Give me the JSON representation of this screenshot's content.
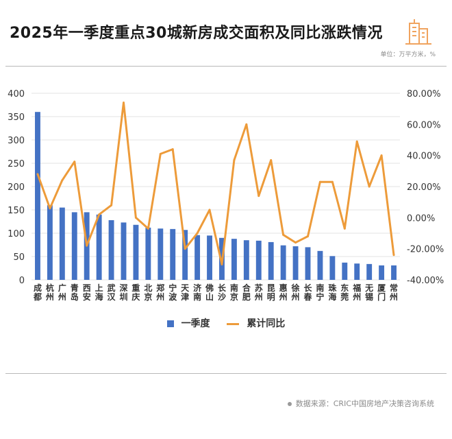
{
  "header": {
    "title": "2025年一季度重点30城新房成交面积及同比涨跌情况",
    "unit": "单位：万平方米，%"
  },
  "footer": {
    "source": "数据来源：CRIC中国房地产决策咨询系统"
  },
  "colors": {
    "bar": "#4472C4",
    "line": "#ED9B3A",
    "logo": "#F0A35E"
  },
  "chart_data": {
    "type": "bar",
    "categories": [
      "成都",
      "杭州",
      "广州",
      "青岛",
      "西安",
      "上海",
      "武汉",
      "深圳",
      "重庆",
      "北京",
      "郑州",
      "宁波",
      "天津",
      "济南",
      "佛山",
      "长沙",
      "南京",
      "合肥",
      "苏州",
      "昆明",
      "惠州",
      "徐州",
      "长春",
      "南宁",
      "珠海",
      "东莞",
      "福州",
      "无锡",
      "厦门",
      "常州"
    ],
    "series": [
      {
        "name": "一季度",
        "type": "bar",
        "axis": "left",
        "values": [
          360,
          160,
          155,
          145,
          145,
          140,
          128,
          123,
          118,
          112,
          110,
          109,
          107,
          96,
          95,
          90,
          88,
          85,
          84,
          81,
          74,
          72,
          70,
          62,
          51,
          37,
          35,
          34,
          31,
          31
        ]
      },
      {
        "name": "累计同比",
        "type": "line",
        "axis": "right",
        "values": [
          28,
          6,
          24,
          36,
          -18,
          2,
          8,
          74,
          0,
          -7,
          41,
          44,
          -20,
          -10,
          5,
          -30,
          37,
          60,
          14,
          37,
          -11,
          -16,
          -12,
          23,
          23,
          -7,
          49,
          20,
          40,
          -24
        ]
      }
    ],
    "left_axis": {
      "ylim": [
        0,
        400
      ],
      "ticks": [
        "0",
        "50",
        "100",
        "150",
        "200",
        "250",
        "300",
        "350",
        "400"
      ]
    },
    "right_axis": {
      "ylim": [
        -40,
        80
      ],
      "ticks": [
        "-40.00%",
        "-20.00%",
        "0.00%",
        "20.00%",
        "40.00%",
        "60.00%",
        "80.00%"
      ]
    },
    "grid": true,
    "legend": "bottom"
  }
}
